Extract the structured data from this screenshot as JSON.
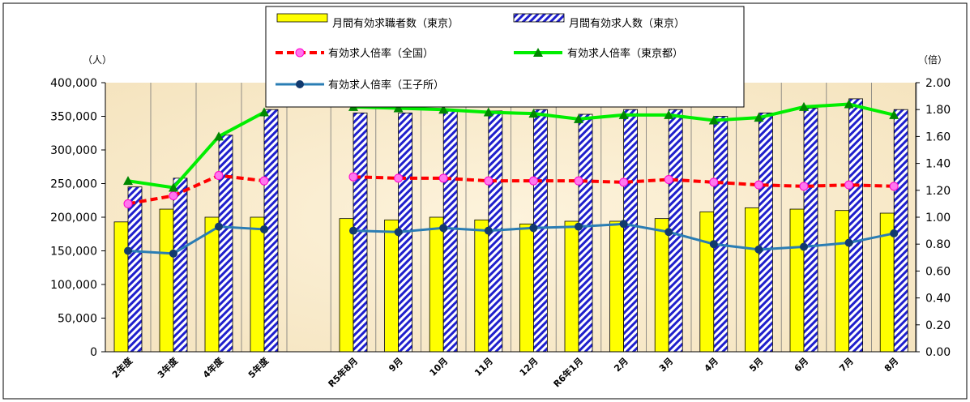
{
  "chart_data": {
    "type": "bar",
    "categories": [
      "2年度",
      "3年度",
      "4年度",
      "5年度",
      "R5年8月",
      "9月",
      "10月",
      "11月",
      "12月",
      "R6年1月",
      "2月",
      "3月",
      "4月",
      "5月",
      "6月",
      "7月",
      "8月"
    ],
    "left_axis": {
      "unit": "（人）",
      "ylim": [
        0,
        400000
      ],
      "ticks": [
        "0",
        "50,000",
        "100,000",
        "150,000",
        "200,000",
        "250,000",
        "300,000",
        "350,000",
        "400,000"
      ]
    },
    "right_axis": {
      "unit": "（倍）",
      "ylim": [
        0,
        2.0
      ],
      "ticks": [
        "0.00",
        "0.20",
        "0.40",
        "0.60",
        "0.80",
        "1.00",
        "1.20",
        "1.40",
        "1.60",
        "1.80",
        "2.00"
      ]
    },
    "bar_series": [
      {
        "name": "月間有効求職者数（東京）",
        "color": "#ffff00",
        "values": [
          193000,
          212000,
          200000,
          200000,
          198000,
          196000,
          200000,
          196000,
          190000,
          194000,
          194000,
          198000,
          208000,
          214000,
          212000,
          210000,
          206000
        ]
      },
      {
        "name": "月間有効求人数（東京）",
        "color": "#1f1fcc",
        "values": [
          245000,
          258000,
          322000,
          360000,
          355000,
          355000,
          360000,
          358000,
          360000,
          353000,
          360000,
          360000,
          350000,
          355000,
          362000,
          376000,
          360000
        ]
      }
    ],
    "line_series": [
      {
        "name": "有効求人倍率（全国）",
        "color": "#ff0000",
        "values": [
          1.1,
          1.16,
          1.31,
          1.27,
          1.3,
          1.29,
          1.29,
          1.27,
          1.27,
          1.27,
          1.26,
          1.28,
          1.26,
          1.24,
          1.23,
          1.24,
          1.23
        ]
      },
      {
        "name": "有効求人倍率（東京都）",
        "color": "#00ee00",
        "values": [
          1.27,
          1.22,
          1.6,
          1.78,
          1.82,
          1.81,
          1.8,
          1.78,
          1.77,
          1.73,
          1.76,
          1.76,
          1.72,
          1.74,
          1.82,
          1.84,
          1.76
        ]
      },
      {
        "name": "有効求人倍率（王子所）",
        "color": "#2a7db4",
        "values": [
          0.75,
          0.73,
          0.93,
          0.91,
          0.9,
          0.89,
          0.92,
          0.9,
          0.92,
          0.93,
          0.95,
          0.89,
          0.8,
          0.76,
          0.78,
          0.81,
          0.88
        ]
      }
    ]
  }
}
